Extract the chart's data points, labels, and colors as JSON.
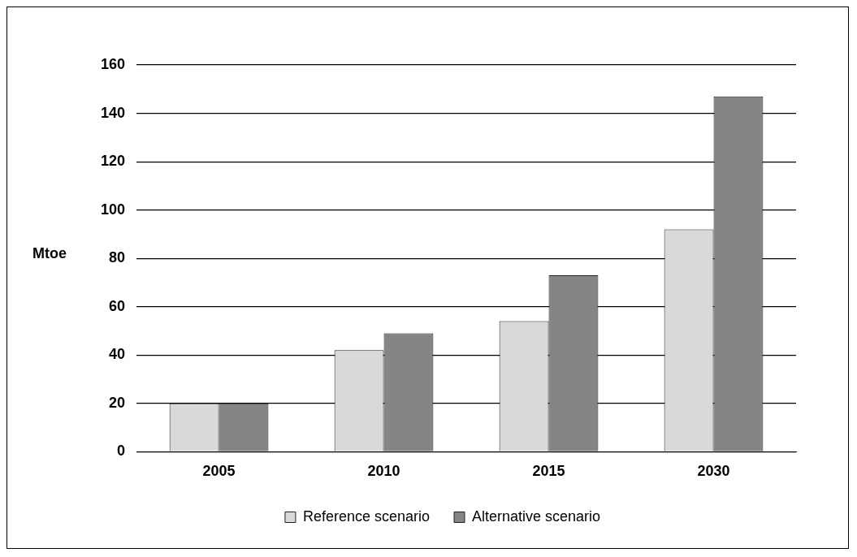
{
  "chart_data": {
    "type": "bar",
    "ylabel": "Mtoe",
    "categories": [
      "2005",
      "2010",
      "2015",
      "2030"
    ],
    "series": [
      {
        "name": "Reference scenario",
        "color": "#d9d9d9",
        "values": [
          20,
          42,
          54,
          92
        ]
      },
      {
        "name": "Alternative scenario",
        "color": "#858585",
        "values": [
          20,
          49,
          73,
          147
        ]
      }
    ],
    "ylim": [
      0,
      160
    ],
    "yticks": [
      0,
      20,
      40,
      60,
      80,
      100,
      120,
      140,
      160
    ],
    "grid": "y",
    "legend": "bottom"
  }
}
